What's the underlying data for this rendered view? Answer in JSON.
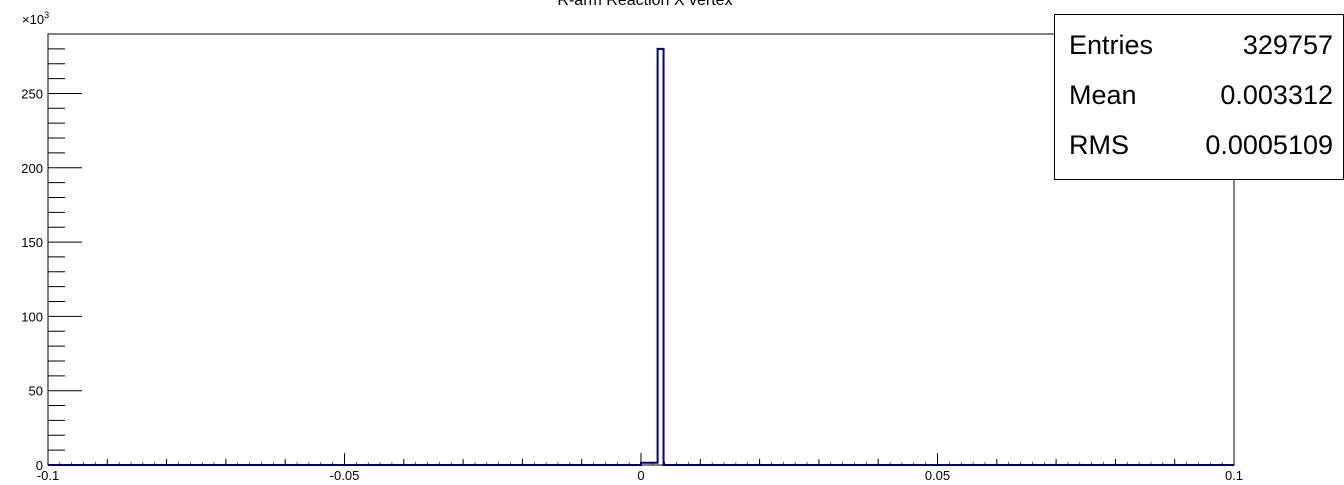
{
  "chart_data": {
    "type": "histogram",
    "title": "R-arm Reaction X vertex",
    "xlabel": "",
    "ylabel": "",
    "xlim": [
      -0.1,
      0.1
    ],
    "ylim": [
      0,
      290000
    ],
    "y_multiplier_label": "×10",
    "y_multiplier_exponent": "3",
    "x_ticks": [
      "-0.1",
      "-0.05",
      "0",
      "0.05",
      "0.1"
    ],
    "y_ticks": [
      "0",
      "50",
      "100",
      "150",
      "200",
      "250"
    ],
    "bins": [
      {
        "x0": 0.0,
        "x1": 0.0028,
        "value": 1500
      },
      {
        "x0": 0.0028,
        "x1": 0.0038,
        "value": 280000
      },
      {
        "x0": 0.0038,
        "x1": 0.0045,
        "value": 0
      }
    ],
    "line_color": "#000080",
    "stats": [
      {
        "label": "Entries",
        "value": "329757"
      },
      {
        "label": "Mean",
        "value": "0.003312"
      },
      {
        "label": "RMS",
        "value": "0.0005109"
      }
    ]
  }
}
